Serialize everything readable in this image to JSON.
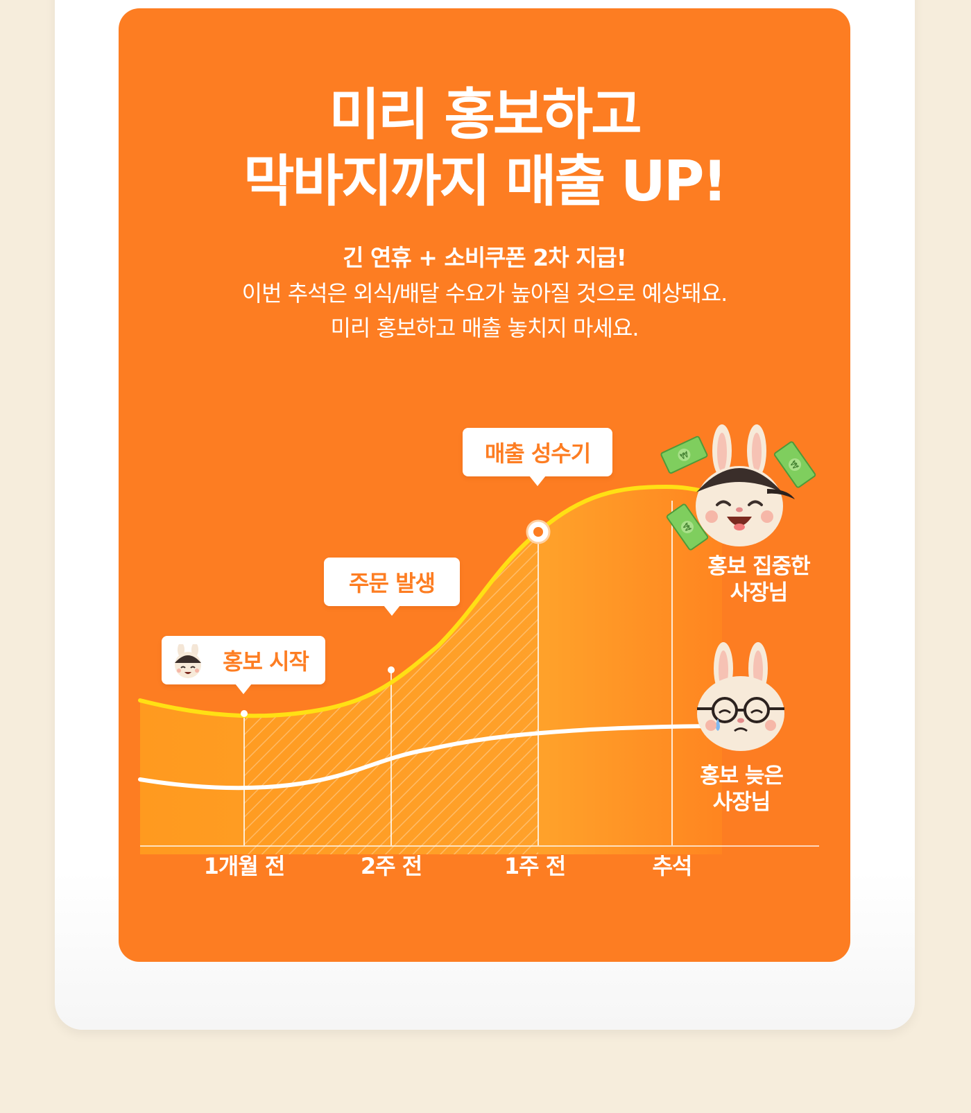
{
  "banner": {
    "title_lines": [
      "미리 홍보하고",
      "막바지까지 매출 UP!"
    ],
    "subtitle": "긴 연휴 + 소비쿠폰 2차 지급!",
    "description_lines": [
      "이번 추석은 외식/배달 수요가 높아질 것으로 예상돼요.",
      "미리 홍보하고 매출 놓치지 마세요."
    ]
  },
  "callouts": {
    "promo_start": "홍보 시작",
    "orders_start": "주문 발생",
    "peak_season": "매출 성수기"
  },
  "chart_data": {
    "type": "area",
    "x_categories": [
      "1개월 전",
      "2주 전",
      "1주 전",
      "추석"
    ],
    "series": [
      {
        "name": "홍보 집중한 사장님",
        "color": "#ffe014"
      },
      {
        "name": "홍보 늦은 사장님",
        "color": "#ffffff"
      }
    ],
    "legend_labels": {
      "focused": [
        "홍보 집중한",
        "사장님"
      ],
      "late": [
        "홍보 늦은",
        "사장님"
      ]
    }
  },
  "colors": {
    "background": "#f6eddc",
    "card": "#fd7d22",
    "highlight_line": "#ffe014",
    "text": "#ffffff"
  }
}
